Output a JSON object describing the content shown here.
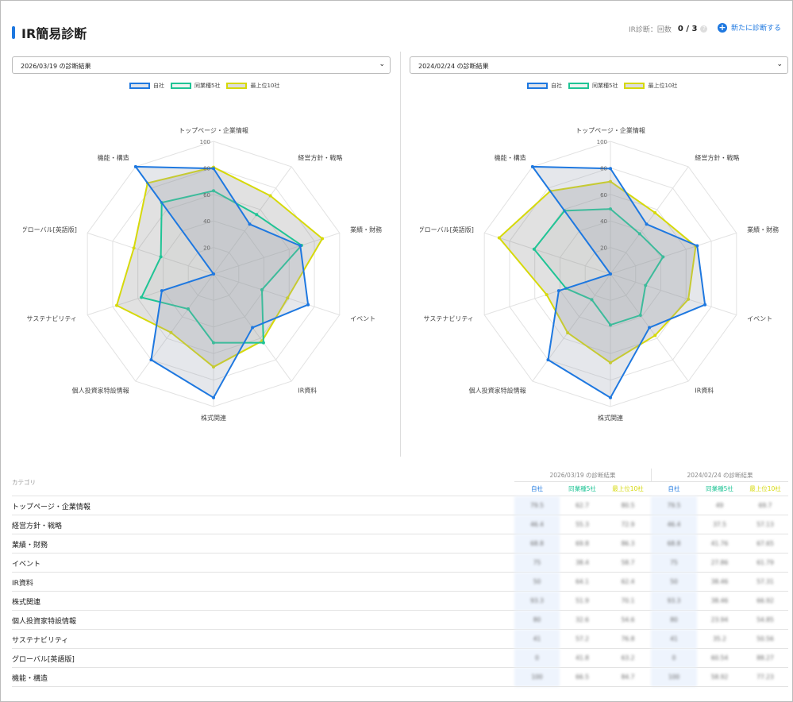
{
  "header": {
    "title": "IR簡易診断",
    "count_label": "IR診断：回数",
    "count_value": "0 / 3",
    "help": "?",
    "new_button": "新たに診断する"
  },
  "panels": [
    {
      "select_label": "2026/03/19 の診断結果"
    },
    {
      "select_label": "2024/02/24 の診断結果"
    }
  ],
  "legend": [
    "自社",
    "同業種5社",
    "最上位10社"
  ],
  "colors": {
    "self": "#1e78e0",
    "peer": "#1fc495",
    "top": "#d6d90a"
  },
  "chart_data": [
    {
      "type": "radar",
      "title": "2026/03/19 の診断結果",
      "rlim": [
        0,
        100
      ],
      "ticks": [
        20,
        40,
        60,
        80,
        100
      ],
      "categories": [
        "トップページ・企業情報",
        "経営方針・戦略",
        "業績・財務",
        "イベント",
        "IR資料",
        "株式関連",
        "個人投資家特設情報",
        "サステナビリティ",
        "グローバル[英語版]",
        "機能・構造"
      ],
      "series": [
        {
          "name": "自社",
          "values": [
            79.5,
            46.4,
            68.8,
            75,
            50,
            93.3,
            80,
            41,
            0,
            100
          ]
        },
        {
          "name": "同業種5社",
          "values": [
            62.7,
            55.3,
            69.8,
            38.4,
            64.1,
            51.9,
            32.6,
            57.2,
            41.8,
            66.5
          ]
        },
        {
          "name": "最上位10社",
          "values": [
            80.5,
            72.9,
            86.3,
            58.7,
            62.4,
            70.1,
            54.6,
            76.8,
            63.2,
            84.7
          ]
        }
      ]
    },
    {
      "type": "radar",
      "title": "2024/02/24 の診断結果",
      "rlim": [
        0,
        100
      ],
      "ticks": [
        20,
        40,
        60,
        80,
        100
      ],
      "categories": [
        "トップページ・企業情報",
        "経営方針・戦略",
        "業績・財務",
        "イベント",
        "IR資料",
        "株式関連",
        "個人投資家特設情報",
        "サステナビリティ",
        "グローバル[英語版]",
        "機能・構造"
      ],
      "series": [
        {
          "name": "自社",
          "values": [
            79.5,
            46.4,
            68.8,
            75,
            50,
            93.3,
            80,
            41,
            0,
            100
          ]
        },
        {
          "name": "同業種5社",
          "values": [
            49,
            37.5,
            41.76,
            27.86,
            38.46,
            38.46,
            23.94,
            35.2,
            60.54,
            58.92
          ]
        },
        {
          "name": "最上位10社",
          "values": [
            69.7,
            57.13,
            67.65,
            61.79,
            57.31,
            66.92,
            54.85,
            50.56,
            88.27,
            77.23
          ]
        }
      ]
    }
  ],
  "table": {
    "category_header": "カテゴリ",
    "groups": [
      "2026/03/19 の診断結果",
      "2024/02/24 の診断結果"
    ],
    "subheaders": [
      "自社",
      "同業種5社",
      "最上位10社",
      "自社",
      "同業種5社",
      "最上位10社"
    ],
    "rows": [
      {
        "cat": "トップページ・企業情報",
        "v": [
          "79.5",
          "62.7",
          "80.5",
          "79.5",
          "49",
          "69.7"
        ]
      },
      {
        "cat": "経営方針・戦略",
        "v": [
          "46.4",
          "55.3",
          "72.9",
          "46.4",
          "37.5",
          "57.13"
        ]
      },
      {
        "cat": "業績・財務",
        "v": [
          "68.8",
          "69.8",
          "86.3",
          "68.8",
          "41.76",
          "67.65"
        ]
      },
      {
        "cat": "イベント",
        "v": [
          "75",
          "38.4",
          "58.7",
          "75",
          "27.86",
          "61.79"
        ]
      },
      {
        "cat": "IR資料",
        "v": [
          "50",
          "64.1",
          "62.4",
          "50",
          "38.46",
          "57.31"
        ]
      },
      {
        "cat": "株式関連",
        "v": [
          "93.3",
          "51.9",
          "70.1",
          "93.3",
          "38.46",
          "66.92"
        ]
      },
      {
        "cat": "個人投資家特設情報",
        "v": [
          "80",
          "32.6",
          "54.6",
          "80",
          "23.94",
          "54.85"
        ]
      },
      {
        "cat": "サステナビリティ",
        "v": [
          "41",
          "57.2",
          "76.8",
          "41",
          "35.2",
          "50.56"
        ]
      },
      {
        "cat": "グローバル[英語版]",
        "v": [
          "0",
          "41.8",
          "63.2",
          "0",
          "60.54",
          "88.27"
        ]
      },
      {
        "cat": "機能・構造",
        "v": [
          "100",
          "66.5",
          "84.7",
          "100",
          "58.92",
          "77.23"
        ]
      }
    ]
  }
}
